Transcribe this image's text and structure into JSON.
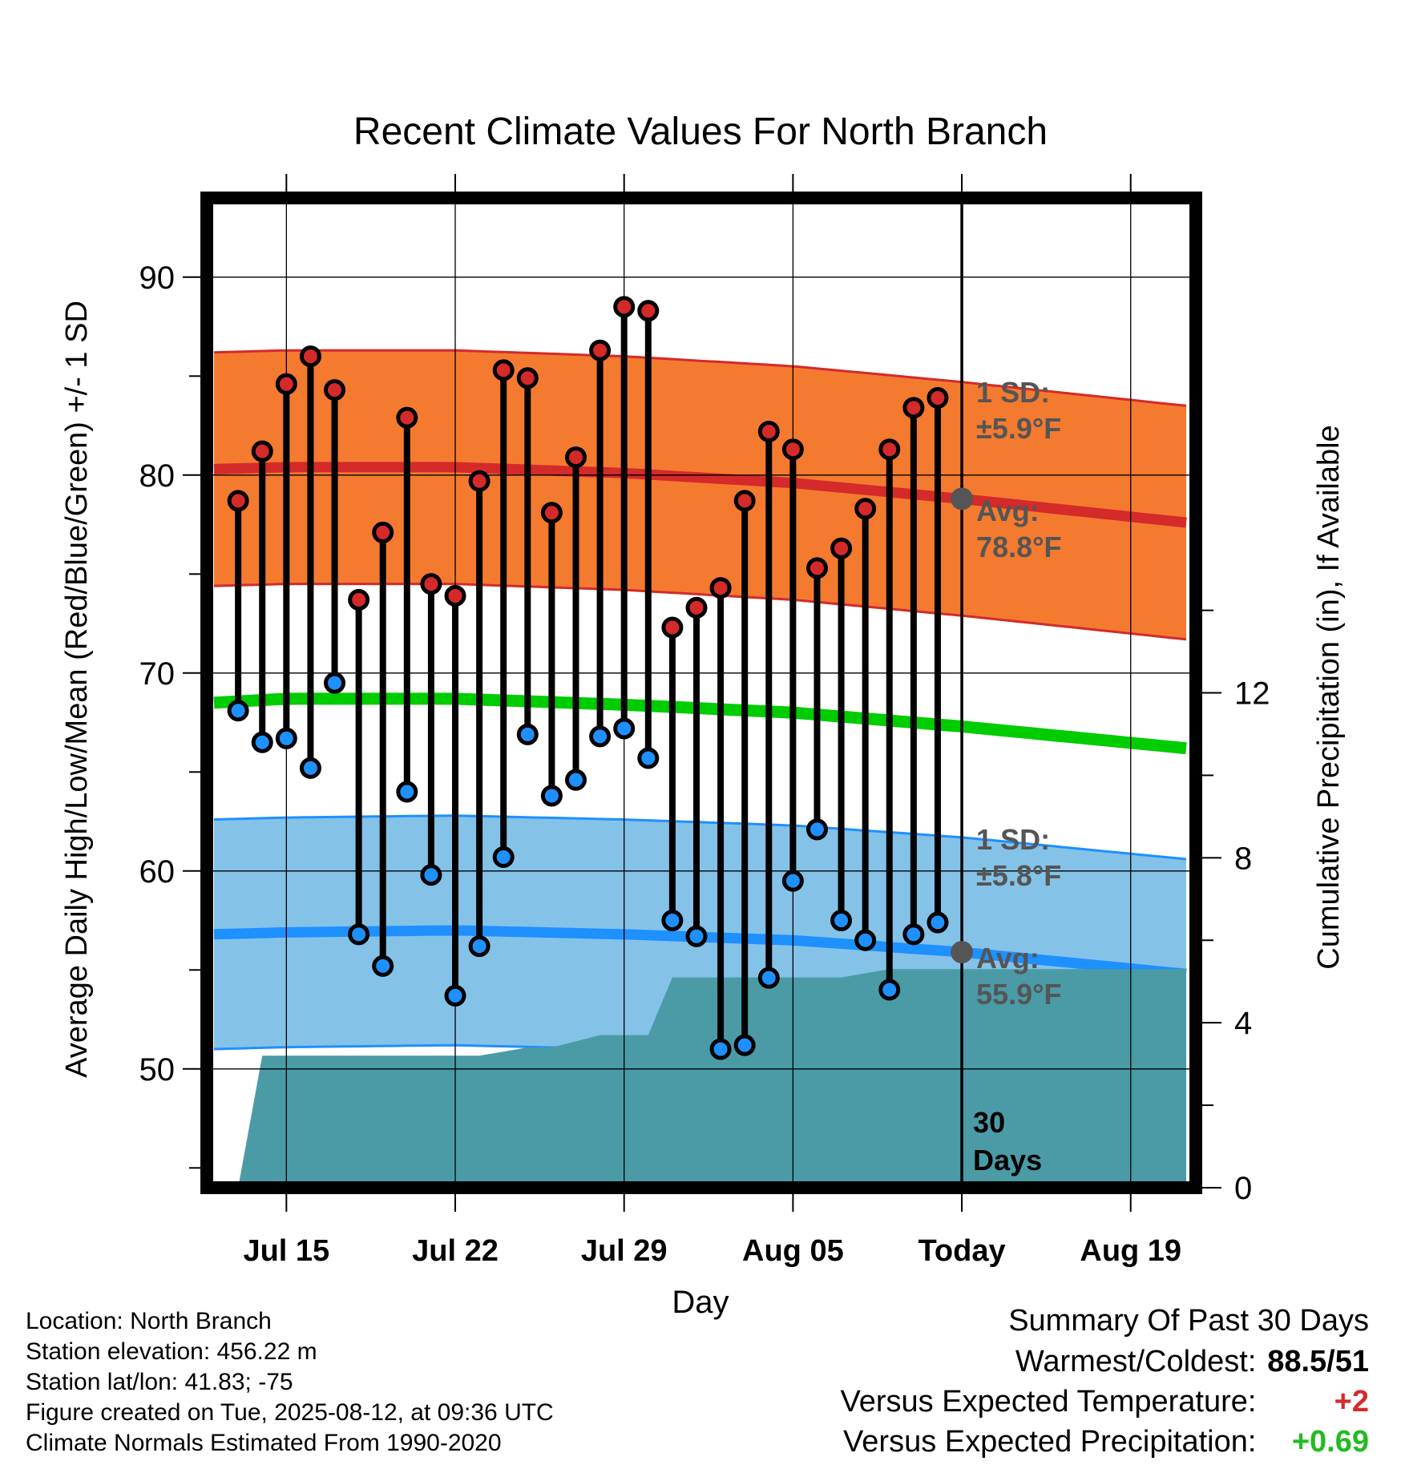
{
  "chart_data": {
    "type": "line",
    "title": "Recent Climate Values For North Branch",
    "xlabel": "Day",
    "ylabel": "Average Daily High/Low/Mean (Red/Blue/Green) +/- 1 SD",
    "y2label": "Cumulative Precipitation (in), If Available",
    "ylim": [
      44,
      94
    ],
    "y2lim": [
      0,
      24
    ],
    "yticks": [
      50,
      60,
      70,
      80,
      90
    ],
    "y2ticks": [
      0,
      4,
      8,
      12
    ],
    "xlim": [
      -3.3,
      37.7
    ],
    "xticks": [
      {
        "x": 0,
        "label": "Jul 15"
      },
      {
        "x": 7,
        "label": "Jul 22"
      },
      {
        "x": 14,
        "label": "Jul 29"
      },
      {
        "x": 21,
        "label": "Aug 05"
      },
      {
        "x": 28,
        "label": "Today"
      },
      {
        "x": 35,
        "label": "Aug 19"
      }
    ],
    "grid": true,
    "days": [
      -2,
      -1,
      0,
      1,
      2,
      3,
      4,
      5,
      6,
      7,
      8,
      9,
      10,
      11,
      12,
      13,
      14,
      15,
      16,
      17,
      18,
      19,
      20,
      21,
      22,
      23,
      24,
      25,
      26,
      27
    ],
    "highs": [
      78.7,
      81.2,
      84.6,
      86.0,
      84.3,
      73.7,
      77.1,
      82.9,
      74.5,
      73.9,
      79.7,
      85.3,
      84.9,
      78.1,
      80.9,
      86.3,
      88.5,
      88.3,
      72.3,
      73.3,
      74.3,
      78.7,
      82.2,
      81.3,
      75.3,
      76.3,
      78.3,
      81.3,
      83.4,
      83.9
    ],
    "lows": [
      68.1,
      66.5,
      66.7,
      65.2,
      69.5,
      56.8,
      55.2,
      64.0,
      59.8,
      53.7,
      56.2,
      60.7,
      66.9,
      63.8,
      64.6,
      66.8,
      67.2,
      65.7,
      57.5,
      56.7,
      51.0,
      51.2,
      54.6,
      59.5,
      62.1,
      57.5,
      56.5,
      54.0,
      56.8,
      57.4
    ],
    "normal_high": {
      "x": [
        -3,
        0,
        7,
        14,
        21,
        28,
        37.3
      ],
      "avg": [
        80.3,
        80.4,
        80.4,
        80.1,
        79.6,
        78.8,
        77.6
      ],
      "sd": 5.9
    },
    "normal_low": {
      "x": [
        -3,
        0,
        7,
        14,
        21,
        28,
        37.3
      ],
      "avg": [
        56.8,
        56.9,
        57.0,
        56.8,
        56.5,
        55.9,
        54.8
      ],
      "sd": 5.8
    },
    "normal_mean": {
      "x": [
        -3,
        0,
        7,
        14,
        21,
        28,
        37.3
      ],
      "avg": [
        68.5,
        68.7,
        68.7,
        68.4,
        68.0,
        67.3,
        66.2
      ]
    },
    "precip": {
      "x": [
        -2,
        -1,
        8,
        10,
        11,
        13,
        15,
        16,
        17,
        23,
        25,
        37.3
      ],
      "cumulative": [
        0,
        3.2,
        3.2,
        3.4,
        3.4,
        3.7,
        3.7,
        5.1,
        5.1,
        5.1,
        5.3,
        5.3
      ]
    },
    "today_x": 28,
    "annotations": {
      "high_sd_line1": "1 SD:",
      "high_sd_line2": "±5.9°F",
      "high_avg_line1": "Avg:",
      "high_avg_line2": "78.8°F",
      "low_sd_line1": "1 SD:",
      "low_sd_line2": "±5.8°F",
      "low_avg_line1": "Avg:",
      "low_avg_line2": "55.9°F",
      "days_line1": "30",
      "days_line2": "Days"
    },
    "colors": {
      "high_band": "#f47a30",
      "high_avg": "#d42a2a",
      "high_edge": "#d42a2a",
      "low_band": "#85c2e8",
      "low_avg": "#1e90ff",
      "low_edge": "#1e90ff",
      "mean": "#00cc00",
      "precip": "#4a9ba6",
      "annotation": "#555555",
      "high_point": "#d42a2a",
      "low_point": "#1e90ff"
    }
  },
  "info": {
    "location": "Location: North Branch",
    "elevation": "Station elevation: 456.22 m",
    "latlon": "Station lat/lon: 41.83; -75",
    "created": "Figure created on Tue, 2025-08-12, at 09:36 UTC",
    "normals": "Climate Normals Estimated From 1990-2020"
  },
  "summary": {
    "title": "Summary Of Past 30 Days",
    "warmest_label": "Warmest/Coldest:",
    "warmest_value": "88.5/51",
    "temp_label": "Versus Expected Temperature:",
    "temp_value": "+2",
    "temp_color": "#d42a2a",
    "precip_label": "Versus Expected Precipitation:",
    "precip_value": "+0.69",
    "precip_color": "#22bb22"
  }
}
